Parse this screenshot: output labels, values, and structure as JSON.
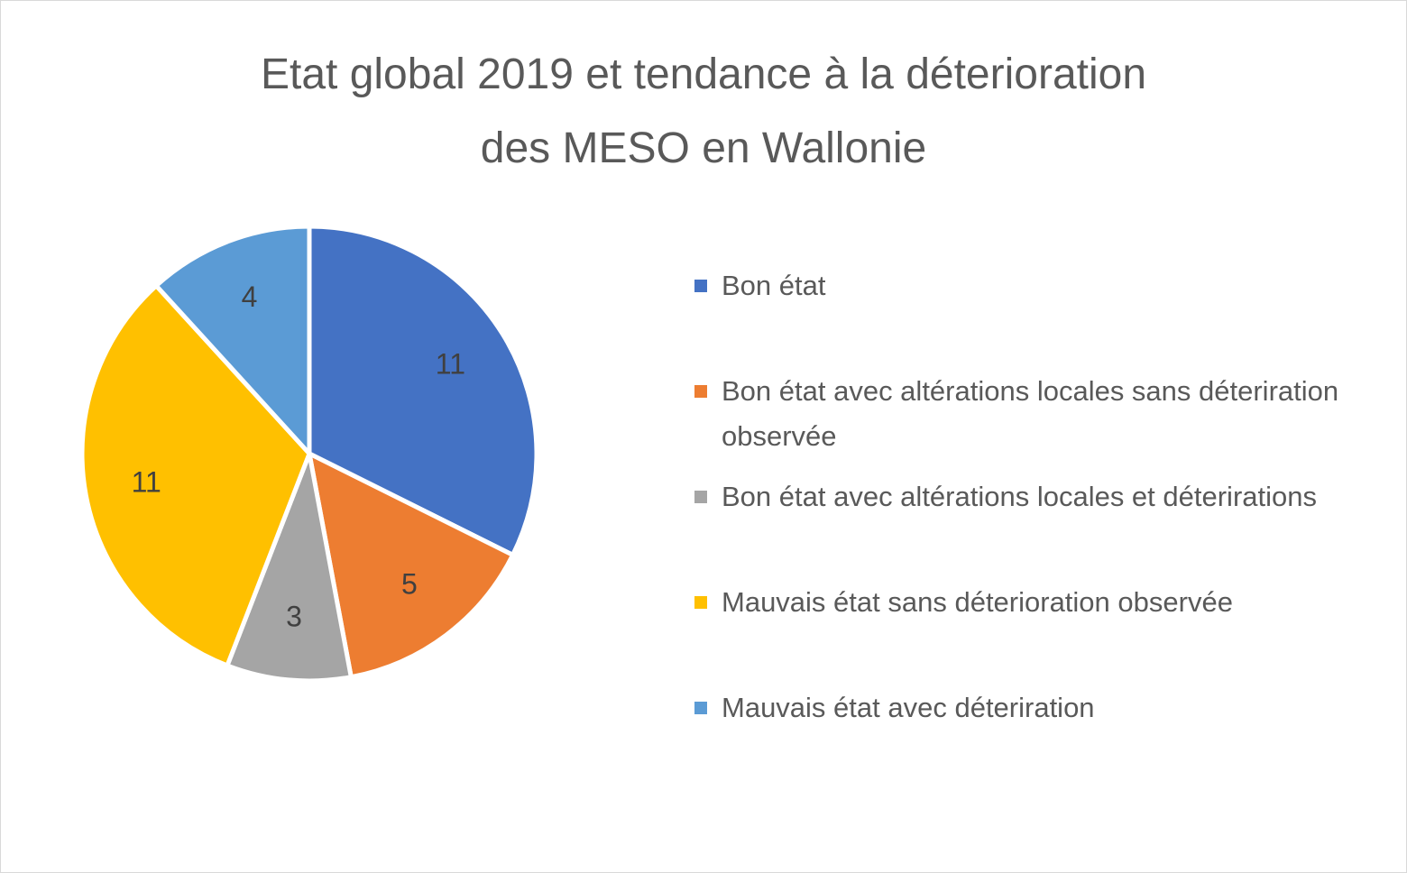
{
  "chart_data": {
    "type": "pie",
    "title": [
      "Etat global 2019 et tendance à la déterioration",
      "des MESO en Wallonie"
    ],
    "categories": [
      "Bon état",
      "Bon état avec altérations locales sans déteriration observée",
      "Bon état avec altérations locales et déterirations",
      "Mauvais état sans déterioration observée",
      "Mauvais état avec déteriration"
    ],
    "values": [
      11,
      5,
      3,
      11,
      4
    ],
    "colors": [
      "#4472c4",
      "#ed7d31",
      "#a5a5a5",
      "#ffc000",
      "#5b9bd5"
    ],
    "legend": "right"
  }
}
